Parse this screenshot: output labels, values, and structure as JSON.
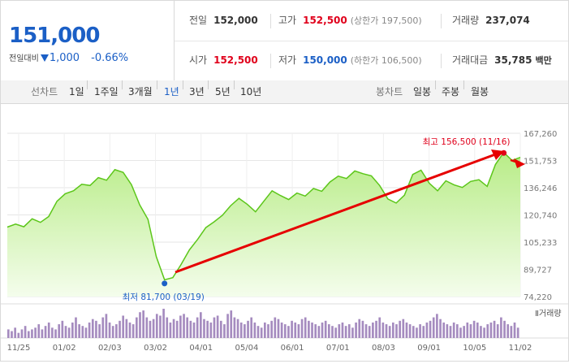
{
  "quote": {
    "price": "151,000",
    "change_label": "전일대비",
    "change_value": "1,000",
    "change_pct": "-0.66%",
    "stats": {
      "prev_label": "전일",
      "prev_value": "152,000",
      "high_label": "고가",
      "high_value": "152,500",
      "upper_limit": "(상한가 197,500)",
      "volume_label": "거래량",
      "volume_value": "237,074",
      "open_label": "시가",
      "open_value": "152,500",
      "low_label": "저가",
      "low_value": "150,000",
      "lower_limit": "(하한가 106,500)",
      "amount_label": "거래대금",
      "amount_value": "35,785",
      "amount_unit": "백만"
    },
    "colors": {
      "up": "#e0001b",
      "down": "#1b5fc6"
    }
  },
  "tabs": {
    "line_label": "선차트",
    "line_items": [
      "1일",
      "1주일",
      "3개월",
      "1년",
      "3년",
      "5년",
      "10년"
    ],
    "line_active": "1년",
    "candle_label": "봉차트",
    "candle_items": [
      "일봉",
      "주봉",
      "월봉"
    ]
  },
  "chart_data": {
    "type": "area",
    "series": [
      {
        "values": [
          113800,
          115500,
          114000,
          118500,
          116500,
          119800,
          128500,
          132800,
          134500,
          138200,
          137500,
          142000,
          140500,
          146500,
          145000,
          138000,
          126500,
          118200,
          97000,
          83800,
          85000,
          92500,
          100800,
          106800,
          113500,
          116800,
          120500,
          126000,
          130200,
          126800,
          122500,
          128500,
          134500,
          131800,
          129500,
          133200,
          131500,
          135800,
          134200,
          139500,
          142800,
          141500,
          145800,
          144200,
          143000,
          137500,
          129800,
          127500,
          132000,
          143800,
          146200,
          138800,
          134500,
          140200,
          137800,
          136400,
          139800,
          140800,
          137000,
          149500,
          156300,
          151800,
          153500
        ]
      }
    ],
    "x_ticks": [
      "11/25",
      "01/02",
      "02/03",
      "03/02",
      "04/01",
      "05/04",
      "06/01",
      "07/01",
      "08/03",
      "09/01",
      "10/05",
      "11/02"
    ],
    "y_ticks": [
      "167,260",
      "151,753",
      "136,246",
      "120,740",
      "105,233",
      "89,727",
      "74,220"
    ],
    "ylim": [
      74220,
      167260
    ],
    "grid": true,
    "annotations": {
      "high_label": "최고 156,500 (11/16)",
      "high_value": 156500,
      "low_label": "최저 81,700 (03/19)",
      "low_value": 81700
    },
    "volume_label": "거래량",
    "volume": [
      5,
      4,
      6,
      3,
      5,
      7,
      4,
      5,
      6,
      8,
      5,
      7,
      9,
      6,
      5,
      8,
      10,
      7,
      6,
      9,
      12,
      8,
      7,
      6,
      9,
      11,
      10,
      8,
      12,
      14,
      9,
      7,
      8,
      10,
      13,
      11,
      9,
      8,
      12,
      15,
      16,
      12,
      10,
      11,
      14,
      13,
      17,
      12,
      9,
      11,
      10,
      13,
      14,
      12,
      10,
      9,
      12,
      15,
      11,
      10,
      9,
      12,
      13,
      10,
      8,
      14,
      16,
      12,
      11,
      9,
      8,
      10,
      12,
      9,
      7,
      6,
      9,
      8,
      10,
      12,
      11,
      9,
      8,
      7,
      10,
      9,
      8,
      11,
      12,
      10,
      9,
      8,
      7,
      9,
      10,
      8,
      7,
      6,
      8,
      9,
      7,
      8,
      6,
      9,
      11,
      10,
      8,
      7,
      9,
      10,
      12,
      9,
      8,
      7,
      9,
      8,
      10,
      11,
      9,
      8,
      7,
      6,
      8,
      7,
      9,
      10,
      12,
      14,
      11,
      9,
      8,
      7,
      9,
      8,
      6,
      7,
      9,
      8,
      10,
      9,
      7,
      6,
      8,
      9,
      10,
      8,
      12,
      10,
      8,
      7,
      9,
      6
    ]
  }
}
